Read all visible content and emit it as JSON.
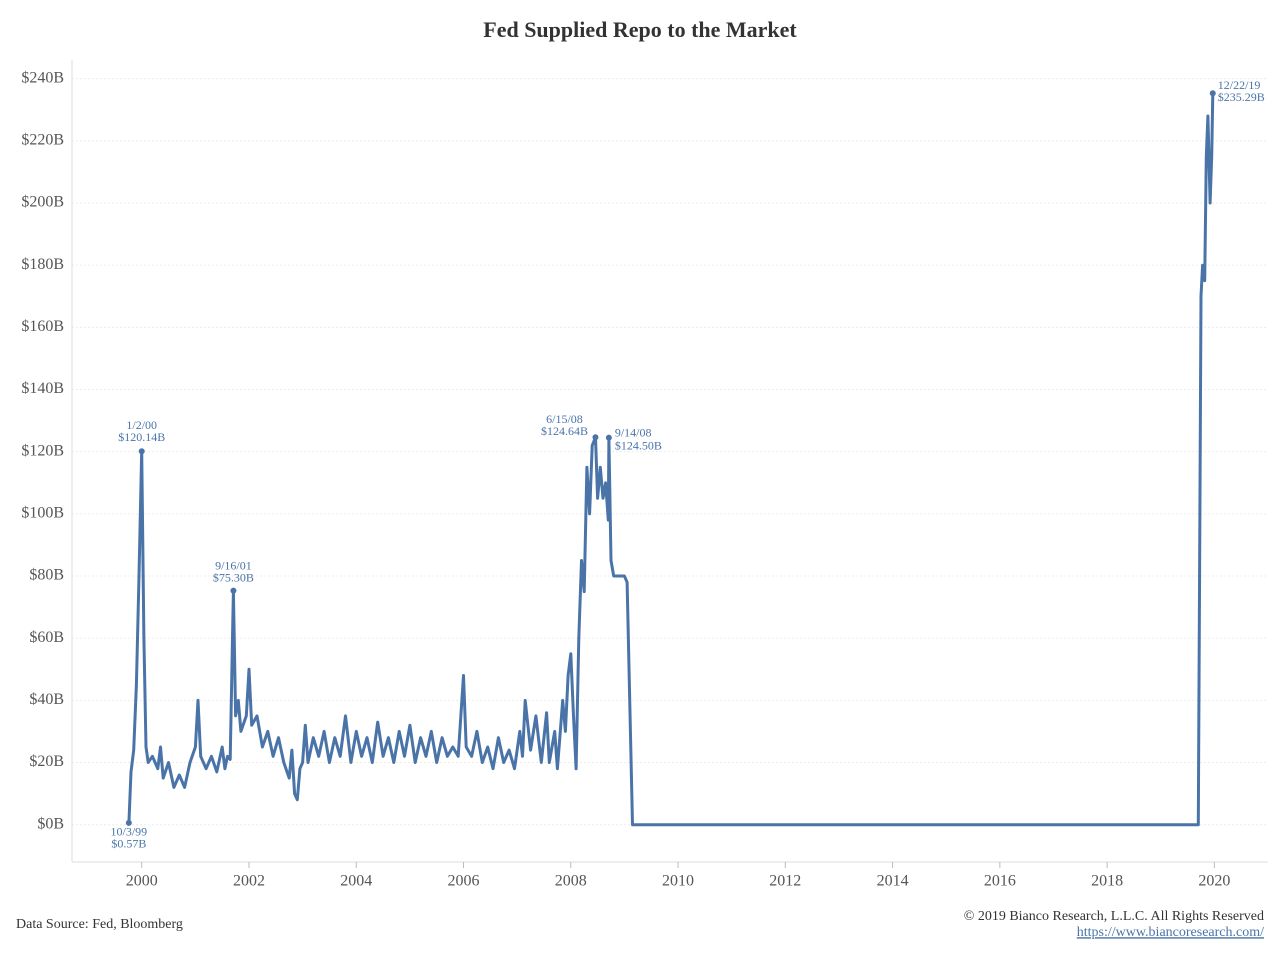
{
  "chart_data": {
    "type": "line",
    "title": "Fed Supplied Repo to the Market",
    "source": "Data Source: Fed, Bloomberg",
    "copyright": "© 2019 Bianco Research, L.L.C. All Rights Reserved",
    "url": "https://www.biancoresearch.com/",
    "color": "#4a74a8",
    "grid": true,
    "xlim": [
      1998.7,
      2021.0
    ],
    "xticks": [
      2000,
      2002,
      2004,
      2006,
      2008,
      2010,
      2012,
      2014,
      2016,
      2018,
      2020
    ],
    "ylim": [
      -12,
      246
    ],
    "yticks": [
      {
        "value": 0,
        "label": "$0B"
      },
      {
        "value": 20,
        "label": "$20B"
      },
      {
        "value": 40,
        "label": "$40B"
      },
      {
        "value": 60,
        "label": "$60B"
      },
      {
        "value": 80,
        "label": "$80B"
      },
      {
        "value": 100,
        "label": "$100B"
      },
      {
        "value": 120,
        "label": "$120B"
      },
      {
        "value": 140,
        "label": "$140B"
      },
      {
        "value": 160,
        "label": "$160B"
      },
      {
        "value": 180,
        "label": "$180B"
      },
      {
        "value": 200,
        "label": "$200B"
      },
      {
        "value": 220,
        "label": "$220B"
      },
      {
        "value": 240,
        "label": "$240B"
      }
    ],
    "x": [
      1999.76,
      1999.8,
      1999.85,
      1999.9,
      1999.95,
      2000.0,
      2000.04,
      2000.08,
      2000.12,
      2000.2,
      2000.3,
      2000.35,
      2000.4,
      2000.5,
      2000.6,
      2000.7,
      2000.8,
      2000.9,
      2001.0,
      2001.05,
      2001.1,
      2001.2,
      2001.3,
      2001.4,
      2001.5,
      2001.55,
      2001.6,
      2001.65,
      2001.71,
      2001.75,
      2001.8,
      2001.85,
      2001.95,
      2002.0,
      2002.05,
      2002.15,
      2002.25,
      2002.35,
      2002.45,
      2002.55,
      2002.65,
      2002.75,
      2002.8,
      2002.85,
      2002.9,
      2002.95,
      2003.0,
      2003.05,
      2003.1,
      2003.2,
      2003.3,
      2003.4,
      2003.5,
      2003.6,
      2003.7,
      2003.8,
      2003.9,
      2004.0,
      2004.1,
      2004.2,
      2004.3,
      2004.4,
      2004.5,
      2004.6,
      2004.7,
      2004.8,
      2004.9,
      2005.0,
      2005.1,
      2005.2,
      2005.3,
      2005.4,
      2005.5,
      2005.6,
      2005.7,
      2005.8,
      2005.9,
      2006.0,
      2006.05,
      2006.15,
      2006.25,
      2006.35,
      2006.45,
      2006.55,
      2006.65,
      2006.75,
      2006.85,
      2006.95,
      2007.05,
      2007.1,
      2007.15,
      2007.25,
      2007.35,
      2007.45,
      2007.55,
      2007.6,
      2007.7,
      2007.75,
      2007.85,
      2007.9,
      2007.95,
      2008.0,
      2008.05,
      2008.1,
      2008.15,
      2008.2,
      2008.25,
      2008.3,
      2008.35,
      2008.4,
      2008.46,
      2008.5,
      2008.55,
      2008.6,
      2008.65,
      2008.7,
      2008.71,
      2008.75,
      2008.8,
      2008.9,
      2009.0,
      2009.05,
      2009.15,
      2012.0,
      2019.7,
      2019.75,
      2019.78,
      2019.82,
      2019.85,
      2019.88,
      2019.92,
      2019.95,
      2019.97
    ],
    "values": [
      0.57,
      17,
      24,
      45,
      80,
      120.14,
      60,
      25,
      20,
      22,
      18,
      25,
      15,
      20,
      12,
      16,
      12,
      20,
      25,
      40,
      22,
      18,
      22,
      17,
      25,
      18,
      22,
      21,
      75.3,
      35,
      40,
      30,
      35,
      50,
      32,
      35,
      25,
      30,
      22,
      28,
      20,
      15,
      24,
      10,
      8,
      18,
      20,
      32,
      20,
      28,
      22,
      30,
      20,
      28,
      22,
      35,
      20,
      30,
      22,
      28,
      20,
      33,
      22,
      28,
      20,
      30,
      22,
      32,
      20,
      28,
      22,
      30,
      20,
      28,
      22,
      25,
      22,
      48,
      25,
      22,
      30,
      20,
      25,
      18,
      28,
      20,
      24,
      18,
      30,
      22,
      40,
      24,
      35,
      20,
      36,
      20,
      30,
      18,
      40,
      30,
      48,
      55,
      35,
      18,
      60,
      85,
      75,
      115,
      100,
      122,
      124.64,
      105,
      115,
      105,
      110,
      98,
      124.5,
      85,
      80,
      80,
      80,
      78,
      0,
      0,
      0,
      170,
      180,
      175,
      215,
      228,
      200,
      215,
      235.29
    ],
    "annotations": [
      {
        "date": "10/3/99",
        "label": "$0.57B",
        "x": 1999.76,
        "y": 0.57
      },
      {
        "date": "1/2/00",
        "label": "$120.14B",
        "x": 2000.0,
        "y": 120.14
      },
      {
        "date": "9/16/01",
        "label": "$75.30B",
        "x": 2001.71,
        "y": 75.3
      },
      {
        "date": "6/15/08",
        "label": "$124.64B",
        "x": 2008.46,
        "y": 124.64
      },
      {
        "date": "9/14/08",
        "label": "$124.50B",
        "x": 2008.71,
        "y": 124.5
      },
      {
        "date": "12/22/19",
        "label": "$235.29B",
        "x": 2019.97,
        "y": 235.29
      }
    ]
  }
}
